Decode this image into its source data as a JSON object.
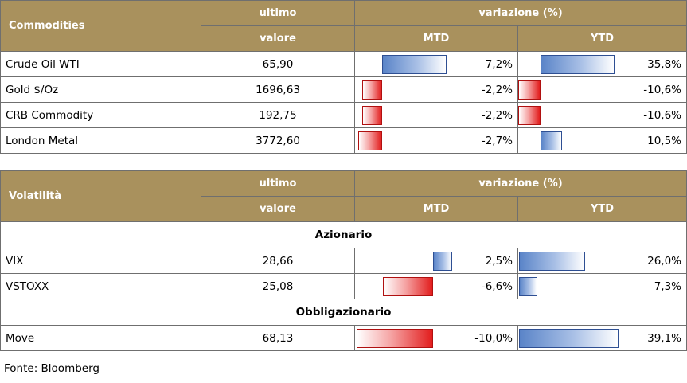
{
  "colors": {
    "header_bg": "#a9915d",
    "header_text": "#ffffff",
    "pos_bar": "#5a84c8",
    "neg_bar": "#e21d1d"
  },
  "table1": {
    "title": "Commodities",
    "col_ultimo_1": "ultimo",
    "col_ultimo_2": "valore",
    "col_var": "variazione (%)",
    "col_mtd": "MTD",
    "col_ytd": "YTD",
    "rows": [
      {
        "name": "Crude Oil WTI",
        "value": "65,90",
        "mtd": "7,2%",
        "ytd": "35,8%",
        "mtd_num": 7.2,
        "ytd_num": 35.8
      },
      {
        "name": "Gold $/Oz",
        "value": "1696,63",
        "mtd": "-2,2%",
        "ytd": "-10,6%",
        "mtd_num": -2.2,
        "ytd_num": -10.6
      },
      {
        "name": "CRB Commodity",
        "value": "192,75",
        "mtd": "-2,2%",
        "ytd": "-10,6%",
        "mtd_num": -2.2,
        "ytd_num": -10.6
      },
      {
        "name": "London Metal",
        "value": "3772,60",
        "mtd": "-2,7%",
        "ytd": "10,5%",
        "mtd_num": -2.7,
        "ytd_num": 10.5
      }
    ]
  },
  "table2": {
    "title": "Volatilità",
    "col_ultimo_1": "ultimo",
    "col_ultimo_2": "valore",
    "col_var": "variazione (%)",
    "col_mtd": "MTD",
    "col_ytd": "YTD",
    "section_1": "Azionario",
    "rows_1": [
      {
        "name": "VIX",
        "value": "28,66",
        "mtd": "2,5%",
        "ytd": "26,0%",
        "mtd_num": 2.5,
        "ytd_num": 26.0
      },
      {
        "name": "VSTOXX",
        "value": "25,08",
        "mtd": "-6,6%",
        "ytd": "7,3%",
        "mtd_num": -6.6,
        "ytd_num": 7.3
      }
    ],
    "section_2": "Obbligazionario",
    "rows_2": [
      {
        "name": "Move",
        "value": "68,13",
        "mtd": "-10,0%",
        "ytd": "39,1%",
        "mtd_num": -10.0,
        "ytd_num": 39.1
      }
    ]
  },
  "footer": "Fonte: Bloomberg"
}
